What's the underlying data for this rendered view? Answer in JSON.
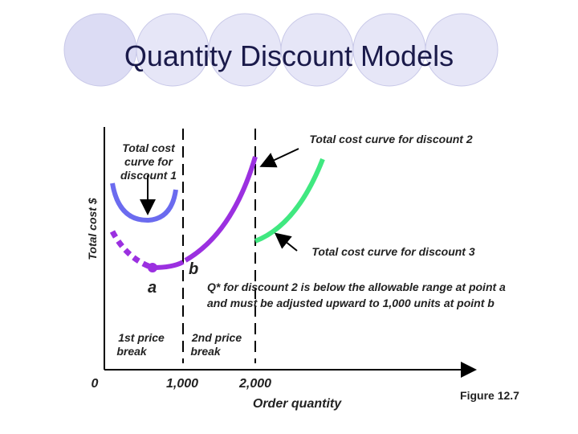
{
  "title": "Quantity Discount Models",
  "y_axis_label": "Total cost $",
  "x_axis_label": "Order quantity",
  "x_ticks": [
    "0",
    "1,000",
    "2,000"
  ],
  "curve_labels": {
    "discount_1": [
      "Total cost",
      "curve for",
      "discount 1"
    ],
    "discount_2": "Total cost curve for discount 2",
    "discount_3": "Total cost curve for discount 3"
  },
  "points": {
    "a": "a",
    "b": "b"
  },
  "note": [
    "Q* for discount 2 is below the allowable range at point a",
    "and must be adjusted upward to 1,000 units at point b"
  ],
  "price_breaks": [
    [
      "1st price",
      "break"
    ],
    [
      "2nd price",
      "break"
    ]
  ],
  "figure": "Figure 12.7"
}
